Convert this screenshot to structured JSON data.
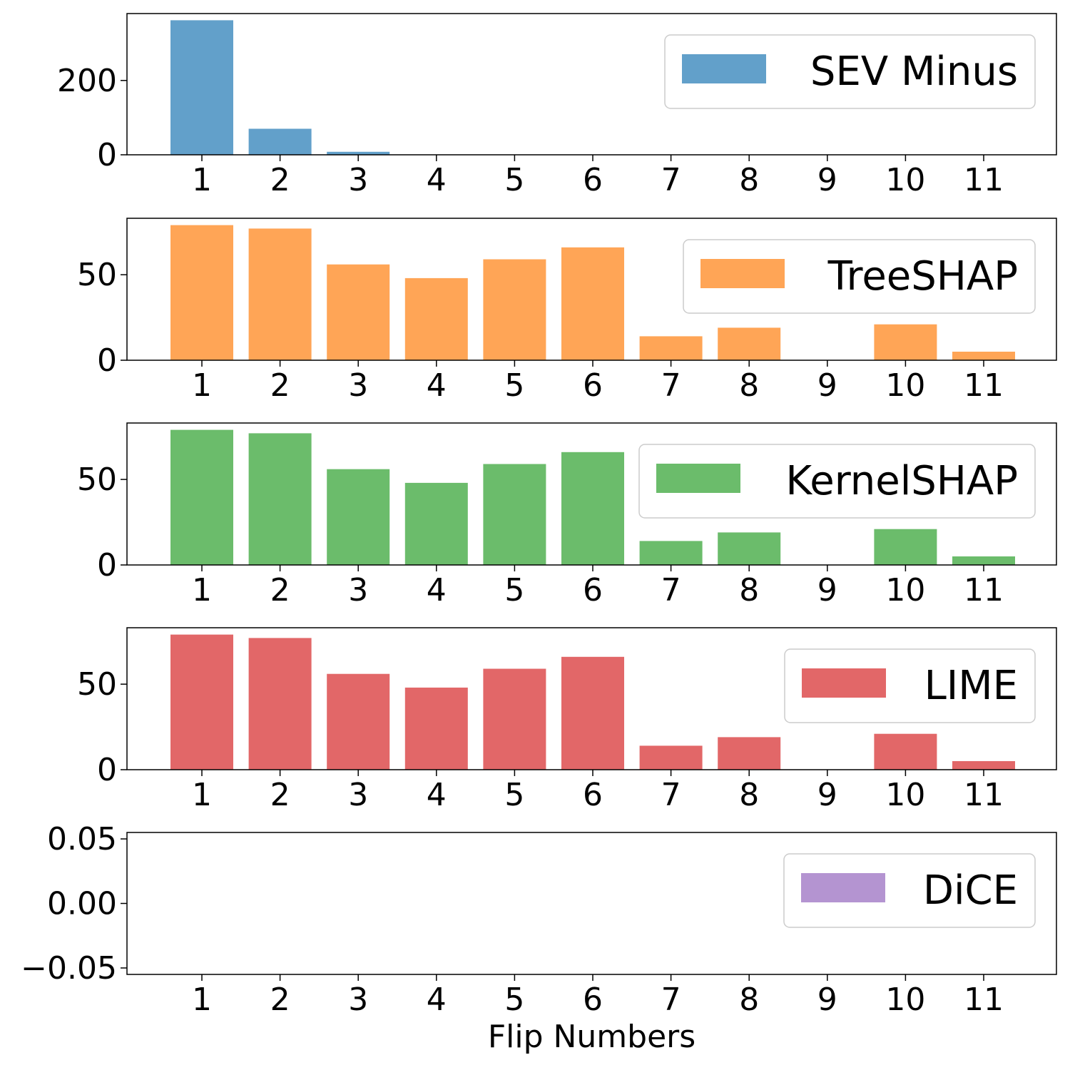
{
  "chart_data": [
    {
      "type": "bar",
      "categories": [
        1,
        2,
        3,
        4,
        5,
        6,
        7,
        8,
        9,
        10,
        11
      ],
      "series": [
        {
          "name": "SEV Minus",
          "values": [
            362,
            70,
            8,
            1,
            0,
            0,
            0,
            0,
            0,
            0,
            0
          ]
        }
      ],
      "color": "#1f77b4",
      "ylim": [
        0,
        380
      ],
      "yticks": [
        0,
        200
      ],
      "ytick_labels": [
        "0",
        "200"
      ],
      "legend_position": "upper-right",
      "xlabel": ""
    },
    {
      "type": "bar",
      "categories": [
        1,
        2,
        3,
        4,
        5,
        6,
        7,
        8,
        9,
        10,
        11
      ],
      "series": [
        {
          "name": "TreeSHAP",
          "values": [
            79,
            77,
            56,
            48,
            59,
            66,
            14,
            19,
            0,
            21,
            5
          ]
        }
      ],
      "color": "#ff7f0e",
      "ylim": [
        0,
        83
      ],
      "yticks": [
        0,
        50
      ],
      "ytick_labels": [
        "0",
        "50"
      ],
      "legend_position": "upper-right",
      "xlabel": ""
    },
    {
      "type": "bar",
      "categories": [
        1,
        2,
        3,
        4,
        5,
        6,
        7,
        8,
        9,
        10,
        11
      ],
      "series": [
        {
          "name": "KernelSHAP",
          "values": [
            79,
            77,
            56,
            48,
            59,
            66,
            14,
            19,
            0,
            21,
            5
          ]
        }
      ],
      "color": "#2ca02c",
      "ylim": [
        0,
        83
      ],
      "yticks": [
        0,
        50
      ],
      "ytick_labels": [
        "0",
        "50"
      ],
      "legend_position": "upper-right",
      "xlabel": ""
    },
    {
      "type": "bar",
      "categories": [
        1,
        2,
        3,
        4,
        5,
        6,
        7,
        8,
        9,
        10,
        11
      ],
      "series": [
        {
          "name": "LIME",
          "values": [
            79,
            77,
            56,
            48,
            59,
            66,
            14,
            19,
            0,
            21,
            5
          ]
        }
      ],
      "color": "#d62728",
      "ylim": [
        0,
        83
      ],
      "yticks": [
        0,
        50
      ],
      "ytick_labels": [
        "0",
        "50"
      ],
      "legend_position": "upper-right",
      "xlabel": ""
    },
    {
      "type": "bar",
      "categories": [
        1,
        2,
        3,
        4,
        5,
        6,
        7,
        8,
        9,
        10,
        11
      ],
      "series": [
        {
          "name": "DiCE",
          "values": [
            0,
            0,
            0,
            0,
            0,
            0,
            0,
            0,
            0,
            0,
            0
          ]
        }
      ],
      "color": "#9467bd",
      "ylim": [
        -0.055,
        0.055
      ],
      "yticks": [
        -0.05,
        0.0,
        0.05
      ],
      "ytick_labels": [
        "−0.05",
        "0.00",
        "0.05"
      ],
      "legend_position": "upper-right",
      "xlabel": "Flip Numbers"
    }
  ]
}
